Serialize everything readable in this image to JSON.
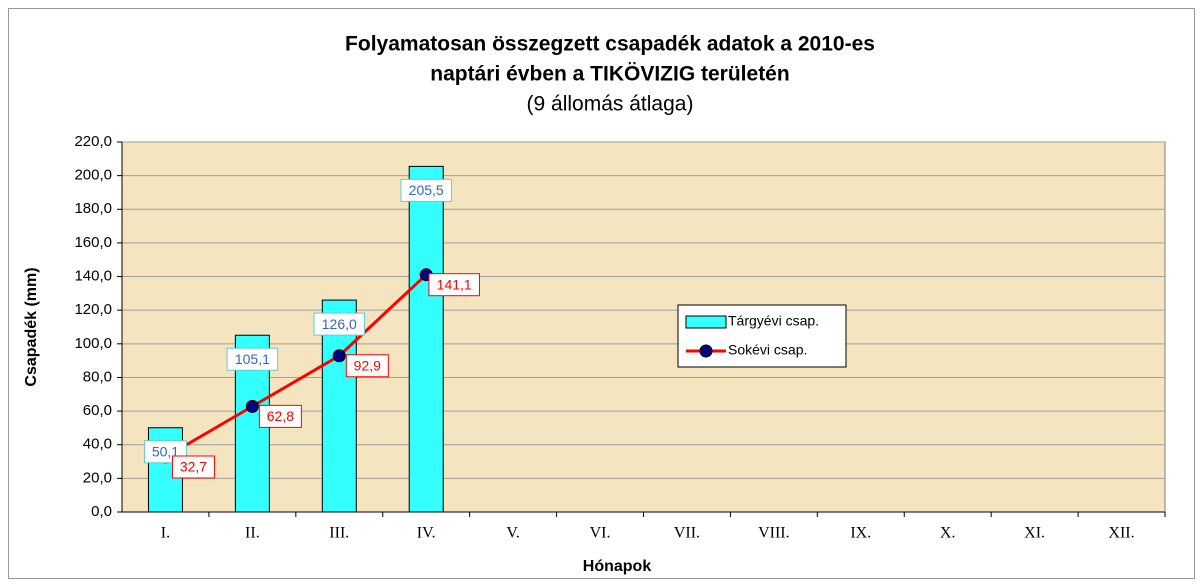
{
  "chart_data": {
    "type": "bar",
    "title": [
      "Folyamatosan összegzett csapadék adatok a 2010-es",
      "naptári évben a TIKÖVIZIG területén"
    ],
    "subtitle": "(9 állomás átlaga)",
    "x_label": "Hónapok",
    "y_label": "Csapadék (mm)",
    "categories": [
      "I.",
      "II.",
      "III.",
      "IV.",
      "V.",
      "VI.",
      "VII.",
      "VIII.",
      "IX.",
      "X.",
      "XI.",
      "XII."
    ],
    "series": [
      {
        "name": "Tárgyévi csap.",
        "type": "bar",
        "color": "#33ffff",
        "values": [
          50.1,
          105.1,
          126.0,
          205.5,
          null,
          null,
          null,
          null,
          null,
          null,
          null,
          null
        ],
        "value_labels": [
          "50,1",
          "105,1",
          "126,0",
          "205,5",
          null,
          null,
          null,
          null,
          null,
          null,
          null,
          null
        ]
      },
      {
        "name": "Sokévi csap.",
        "type": "line",
        "color": "#ff0000",
        "marker_color": "#000080",
        "values": [
          32.7,
          62.8,
          92.9,
          141.1,
          null,
          null,
          null,
          null,
          null,
          null,
          null,
          null
        ],
        "value_labels": [
          "32,7",
          "62,8",
          "92,9",
          "141,1",
          null,
          null,
          null,
          null,
          null,
          null,
          null,
          null
        ]
      }
    ],
    "ylim": [
      0,
      220
    ],
    "yticks": [
      {
        "value": 0,
        "label": "0,0"
      },
      {
        "value": 20,
        "label": "20,0"
      },
      {
        "value": 40,
        "label": "40,0"
      },
      {
        "value": 60,
        "label": "60,0"
      },
      {
        "value": 80,
        "label": "80,0"
      },
      {
        "value": 100,
        "label": "100,0"
      },
      {
        "value": 120,
        "label": "120,0"
      },
      {
        "value": 140,
        "label": "140,0"
      },
      {
        "value": 160,
        "label": "160,0"
      },
      {
        "value": 180,
        "label": "180,0"
      },
      {
        "value": 200,
        "label": "200,0"
      },
      {
        "value": 220,
        "label": "220,0"
      }
    ],
    "grid": true,
    "legend": "right"
  }
}
